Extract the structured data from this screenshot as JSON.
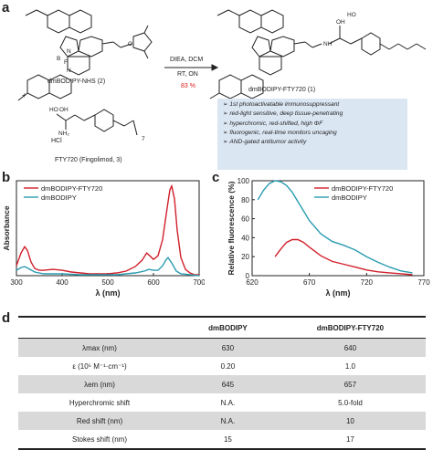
{
  "panels": {
    "a": "a",
    "b": "b",
    "c": "c",
    "d": "d"
  },
  "panel_a": {
    "reactant1_label": "dmBODIPY-NHS (2)",
    "plus": "+",
    "reactant2_label": "FTY720 (Fingolimod, 3)",
    "hcl": "HCl",
    "conditions_top": "DIEA, DCM",
    "conditions_mid": "RT, ON",
    "yield": "83 %",
    "product_label": "dmBODIPY-FTY720 (1)",
    "features": [
      "1st photoactivatable immunosuppressant",
      "red-light sensitive, deep tissue-penetrating",
      "hyperchromic, red-shifted, high ΦF",
      "fluorogenic, real-time monitors uncaging",
      "AND-gated antitumor activity"
    ],
    "atoms": {
      "B": "B",
      "N1": "N",
      "N2": "N",
      "F": "F",
      "O": "O",
      "OH": "OH",
      "HO": "HO",
      "NH": "NH",
      "NH2": "NH₂",
      "seven": "7"
    }
  },
  "colors": {
    "fty720": "#d11f2a",
    "dmbodipy": "#2a9bb0",
    "yield": "#e02020",
    "box": "#dbe6f3"
  },
  "chart_data": [
    {
      "type": "line",
      "panel": "b",
      "xlabel": "λ (nm)",
      "ylabel": "Absorbance",
      "xlim": [
        300,
        700
      ],
      "ylim": [
        0,
        1.05
      ],
      "xticks": [
        300,
        400,
        500,
        600,
        700
      ],
      "yticks": [],
      "legend": "top-left",
      "series": [
        {
          "name": "dmBODIPY-FTY720",
          "color": "#d11f2a",
          "x": [
            300,
            310,
            318,
            324,
            332,
            340,
            350,
            360,
            380,
            400,
            420,
            440,
            460,
            480,
            500,
            520,
            540,
            560,
            575,
            585,
            592,
            600,
            610,
            620,
            630,
            636,
            640,
            646,
            652,
            660,
            670,
            680,
            690,
            700
          ],
          "y": [
            0.11,
            0.25,
            0.32,
            0.28,
            0.15,
            0.08,
            0.06,
            0.06,
            0.07,
            0.06,
            0.04,
            0.03,
            0.02,
            0.02,
            0.02,
            0.03,
            0.05,
            0.1,
            0.17,
            0.25,
            0.22,
            0.18,
            0.22,
            0.4,
            0.75,
            0.95,
            0.99,
            0.85,
            0.5,
            0.2,
            0.07,
            0.03,
            0.01,
            0.01
          ]
        },
        {
          "name": "dmBODIPY",
          "color": "#2a9bb0",
          "x": [
            300,
            310,
            318,
            326,
            340,
            360,
            380,
            400,
            440,
            480,
            520,
            560,
            580,
            590,
            600,
            610,
            620,
            628,
            632,
            640,
            650,
            660,
            680,
            700
          ],
          "y": [
            0.06,
            0.09,
            0.1,
            0.08,
            0.04,
            0.02,
            0.02,
            0.02,
            0.01,
            0.01,
            0.01,
            0.03,
            0.05,
            0.07,
            0.06,
            0.06,
            0.11,
            0.18,
            0.2,
            0.14,
            0.05,
            0.02,
            0.01,
            0.0
          ]
        }
      ]
    },
    {
      "type": "line",
      "panel": "c",
      "xlabel": "λ (nm)",
      "ylabel": "Relative fluorescence (%)",
      "xlim": [
        620,
        770
      ],
      "ylim": [
        0,
        100
      ],
      "xticks": [
        620,
        670,
        720,
        770
      ],
      "yticks": [
        0,
        20,
        40,
        60,
        80,
        100
      ],
      "legend": "top-right",
      "series": [
        {
          "name": "dmBODIPY-FTY720",
          "color": "#d11f2a",
          "x": [
            640,
            645,
            650,
            655,
            660,
            665,
            670,
            680,
            690,
            700,
            710,
            720,
            730,
            740,
            750,
            760
          ],
          "y": [
            20,
            28,
            35,
            38,
            38,
            35,
            30,
            21,
            15,
            12,
            9,
            6,
            4,
            3,
            2,
            1
          ]
        },
        {
          "name": "dmBODIPY",
          "color": "#2a9bb0",
          "x": [
            625,
            630,
            635,
            640,
            645,
            650,
            655,
            660,
            665,
            670,
            680,
            690,
            700,
            710,
            720,
            730,
            740,
            750,
            760
          ],
          "y": [
            80,
            90,
            97,
            100,
            99,
            95,
            88,
            78,
            68,
            58,
            44,
            36,
            32,
            27,
            20,
            14,
            9,
            5,
            3
          ]
        }
      ]
    },
    {
      "type": "table",
      "panel": "d",
      "columns": [
        "",
        "dmBODIPY",
        "dmBODIPY-FTY720"
      ],
      "rows": [
        [
          "λmax (nm)",
          "630",
          "640"
        ],
        [
          "ε (10⁵ M⁻¹·cm⁻¹)",
          "0.20",
          "1.0"
        ],
        [
          "λem (nm)",
          "645",
          "657"
        ],
        [
          "Hyperchromic shift",
          "N.A.",
          "5.0-fold"
        ],
        [
          "Red shift (nm)",
          "N.A.",
          "10"
        ],
        [
          "Stokes shift (nm)",
          "15",
          "17"
        ]
      ]
    }
  ]
}
